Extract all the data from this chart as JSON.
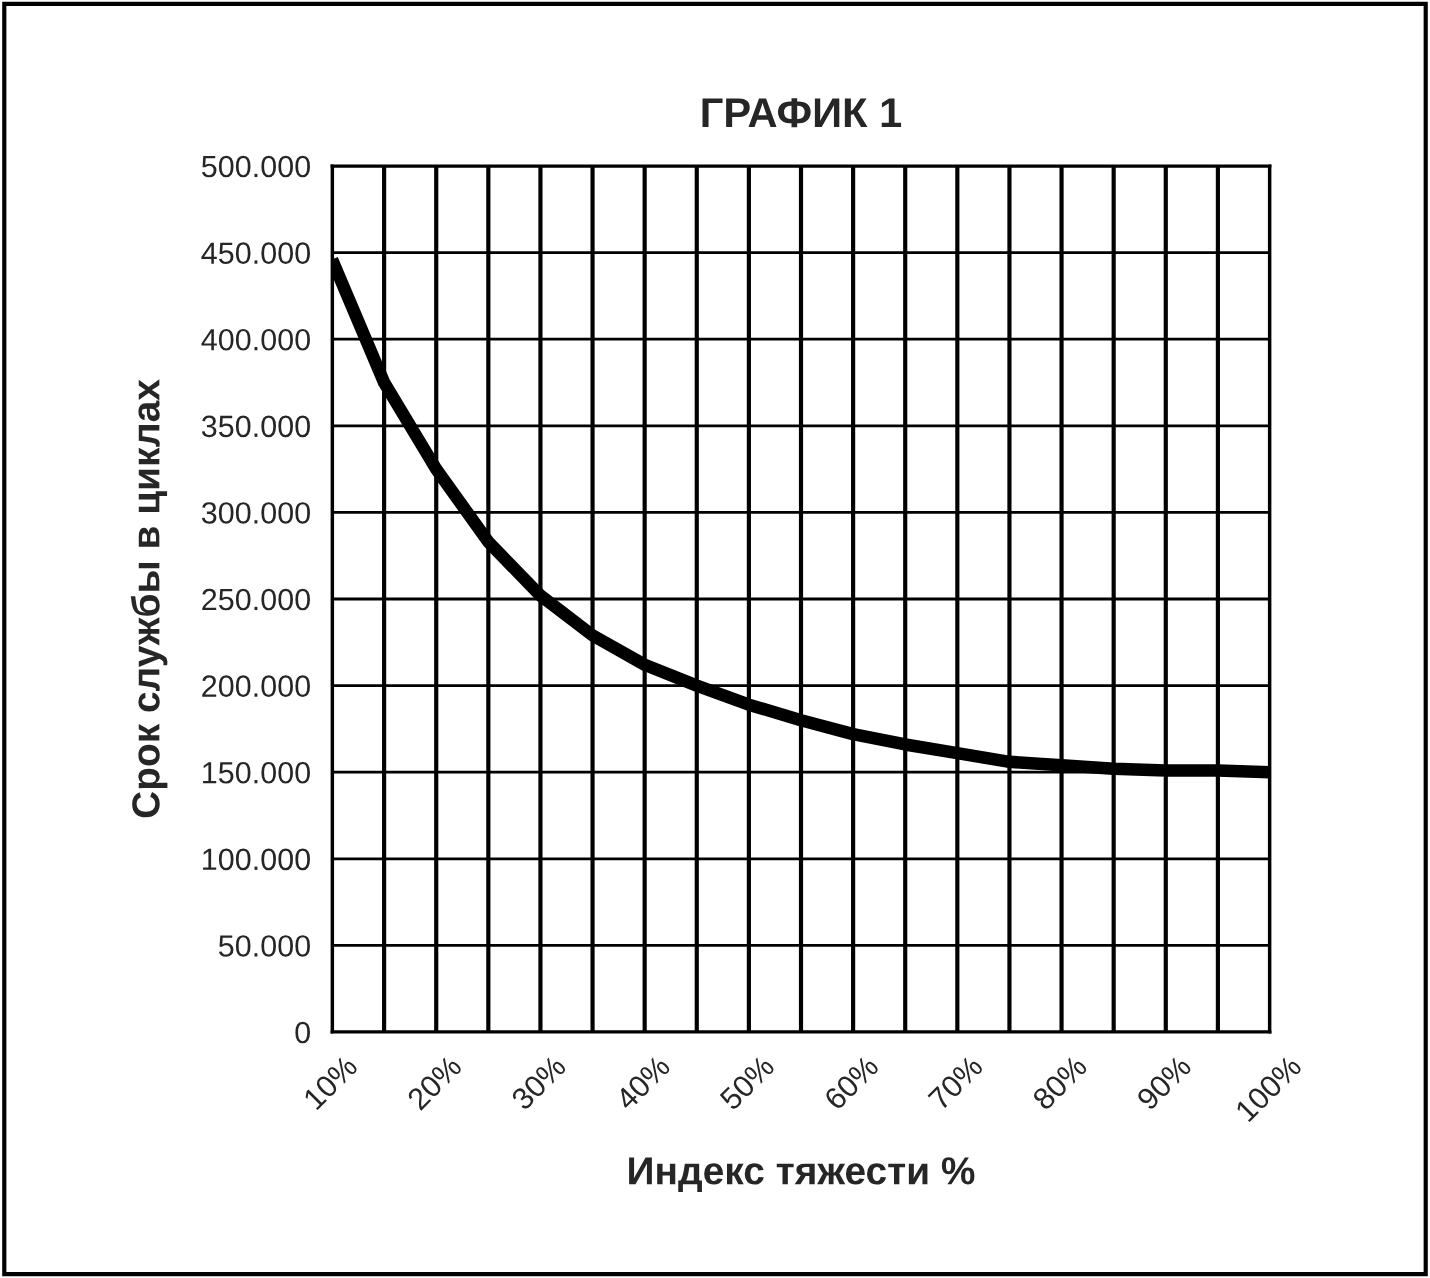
{
  "chart_data": {
    "type": "line",
    "title": "ГРАФИК 1",
    "xlabel": "Индекс тяжести %",
    "ylabel": "Срок службы в циклах",
    "x": [
      10,
      15,
      20,
      25,
      30,
      35,
      40,
      45,
      50,
      55,
      60,
      65,
      70,
      75,
      80,
      85,
      90,
      95,
      100
    ],
    "series": [
      {
        "color": "#000000",
        "values": [
          446000,
          375000,
          325000,
          283000,
          252000,
          229000,
          212000,
          200000,
          189000,
          180000,
          172000,
          166000,
          161000,
          156000,
          154000,
          152000,
          151000,
          151000,
          150000
        ]
      }
    ],
    "xlim": [
      10,
      100
    ],
    "xticks": [
      {
        "value": 10,
        "label": "10%"
      },
      {
        "value": 15,
        "label": null
      },
      {
        "value": 20,
        "label": "20%"
      },
      {
        "value": 25,
        "label": null
      },
      {
        "value": 30,
        "label": "30%"
      },
      {
        "value": 35,
        "label": null
      },
      {
        "value": 40,
        "label": "40%"
      },
      {
        "value": 45,
        "label": null
      },
      {
        "value": 50,
        "label": "50%"
      },
      {
        "value": 55,
        "label": null
      },
      {
        "value": 60,
        "label": "60%"
      },
      {
        "value": 65,
        "label": null
      },
      {
        "value": 70,
        "label": "70%"
      },
      {
        "value": 75,
        "label": null
      },
      {
        "value": 80,
        "label": "80%"
      },
      {
        "value": 85,
        "label": null
      },
      {
        "value": 90,
        "label": "90%"
      },
      {
        "value": 95,
        "label": null
      },
      {
        "value": 100,
        "label": "100%"
      }
    ],
    "ylim": [
      0,
      500000
    ],
    "yticks": [
      0,
      {
        "value": 50000,
        "label": "50.000"
      },
      {
        "value": 100000,
        "label": "100.000"
      },
      {
        "value": 150000,
        "label": "150.000"
      },
      {
        "value": 200000,
        "label": "200.000"
      },
      {
        "value": 250000,
        "label": "250.000"
      },
      {
        "value": 300000,
        "label": "300.000"
      },
      {
        "value": 350000,
        "label": "350.000"
      },
      {
        "value": 400000,
        "label": "400.000"
      },
      {
        "value": 450000,
        "label": "450.000"
      },
      {
        "value": 500000,
        "label": "500.000"
      }
    ],
    "grid": true,
    "legend": false,
    "marker": "none",
    "line_style": "solid"
  }
}
